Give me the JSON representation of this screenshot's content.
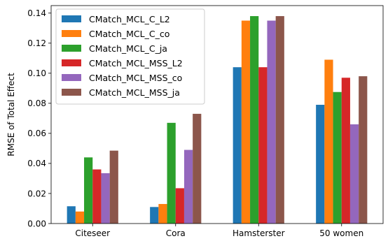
{
  "chart_data": {
    "type": "bar",
    "title": "",
    "xlabel": "",
    "ylabel": "RMSE of Total Effect",
    "categories": [
      "Citeseer",
      "Cora",
      "Hamsterster",
      "50 women"
    ],
    "ylim": [
      0,
      0.145
    ],
    "yticks": [
      0.0,
      0.02,
      0.04,
      0.06,
      0.08,
      0.1,
      0.12,
      0.14
    ],
    "ytick_labels": [
      "0.00",
      "0.02",
      "0.04",
      "0.06",
      "0.08",
      "0.10",
      "0.12",
      "0.14"
    ],
    "grid": false,
    "legend_position": "top-left",
    "series": [
      {
        "name": "CMatch_MCL_C_L2",
        "color": "#1f77b4",
        "values": [
          0.0115,
          0.011,
          0.104,
          0.079
        ]
      },
      {
        "name": "CMatch_MCL_C_co",
        "color": "#ff7f0e",
        "values": [
          0.008,
          0.013,
          0.135,
          0.109
        ]
      },
      {
        "name": "CMatch_MCL_C_ja",
        "color": "#2ca02c",
        "values": [
          0.044,
          0.067,
          0.138,
          0.0875
        ]
      },
      {
        "name": "CMatch_MCL_MSS_L2",
        "color": "#d62728",
        "values": [
          0.036,
          0.0235,
          0.104,
          0.097
        ]
      },
      {
        "name": "CMatch_MCL_MSS_co",
        "color": "#9467bd",
        "values": [
          0.0335,
          0.049,
          0.135,
          0.066
        ]
      },
      {
        "name": "CMatch_MCL_MSS_ja",
        "color": "#8c564b",
        "values": [
          0.0485,
          0.073,
          0.138,
          0.098
        ]
      }
    ]
  }
}
